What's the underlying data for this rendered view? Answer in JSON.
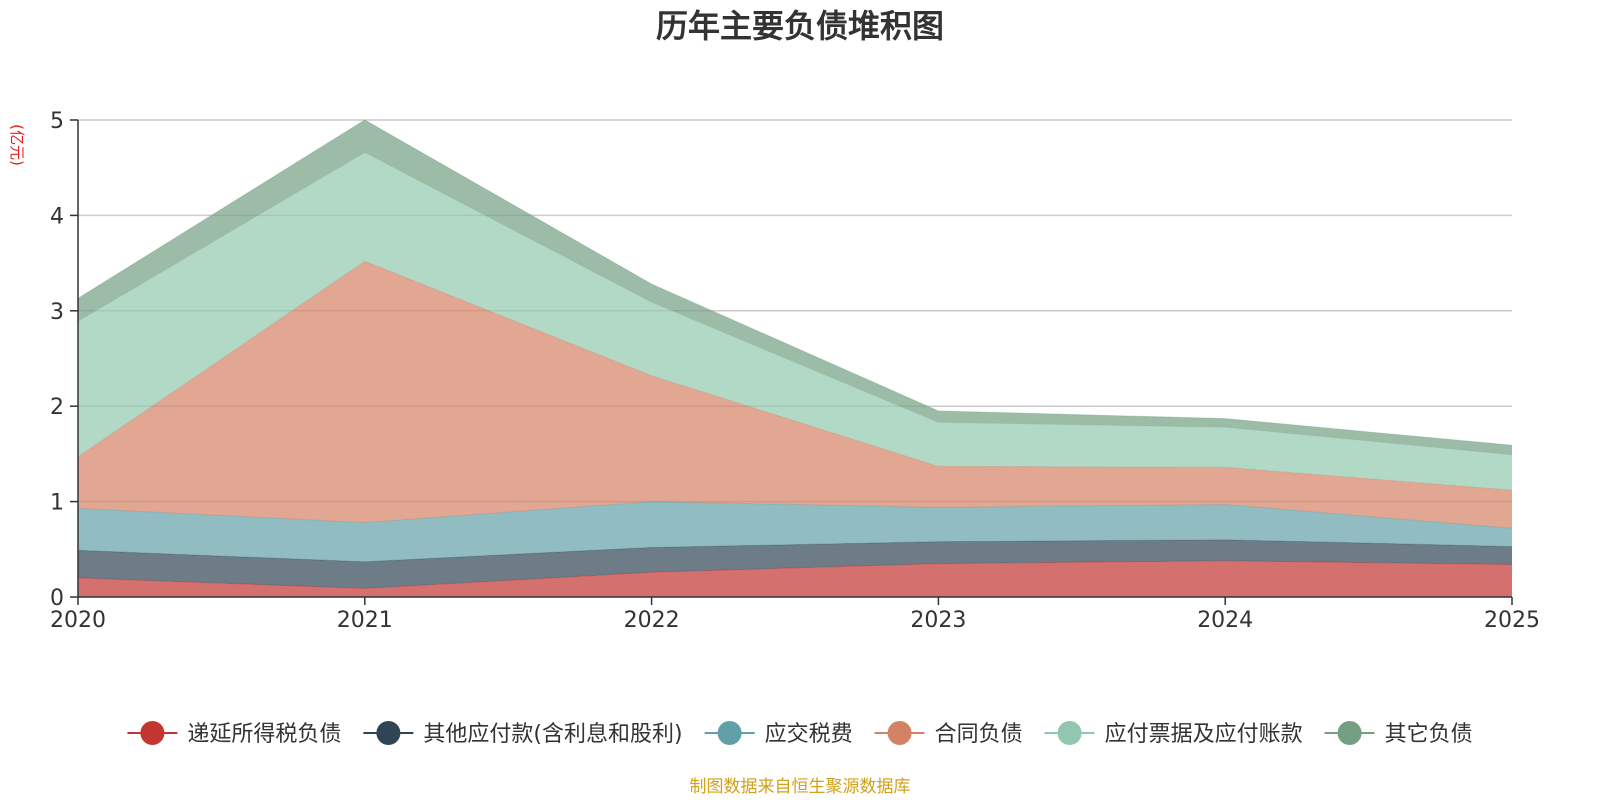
{
  "chart_data": {
    "type": "area",
    "stacked": true,
    "title": "历年主要负债堆积图",
    "unit_label": "(亿元)",
    "x": [
      "2020",
      "2021",
      "2022",
      "2023",
      "2024",
      "2025"
    ],
    "ylim": [
      0,
      5
    ],
    "yticks": [
      0,
      1,
      2,
      3,
      4,
      5
    ],
    "grid": true,
    "legend_position": "bottom",
    "series": [
      {
        "name": "递延所得税负债",
        "color": "#c23531",
        "values": [
          0.2,
          0.09,
          0.26,
          0.35,
          0.38,
          0.34
        ]
      },
      {
        "name": "其他应付款(含利息和股利)",
        "color": "#2f4554",
        "values": [
          0.29,
          0.28,
          0.26,
          0.23,
          0.22,
          0.19
        ]
      },
      {
        "name": "应交税费",
        "color": "#61a0a8",
        "values": [
          0.44,
          0.41,
          0.48,
          0.36,
          0.37,
          0.19
        ]
      },
      {
        "name": "合同负债",
        "color": "#d48265",
        "values": [
          0.54,
          2.74,
          1.32,
          0.43,
          0.39,
          0.4
        ]
      },
      {
        "name": "应付票据及应付账款",
        "color": "#91c7ae",
        "values": [
          1.42,
          1.14,
          0.77,
          0.46,
          0.42,
          0.37
        ]
      },
      {
        "name": "其它负债",
        "color": "#749f83",
        "values": [
          0.24,
          0.34,
          0.19,
          0.12,
          0.09,
          0.1
        ]
      }
    ]
  },
  "footer": {
    "source": "制图数据来自恒生聚源数据库"
  }
}
